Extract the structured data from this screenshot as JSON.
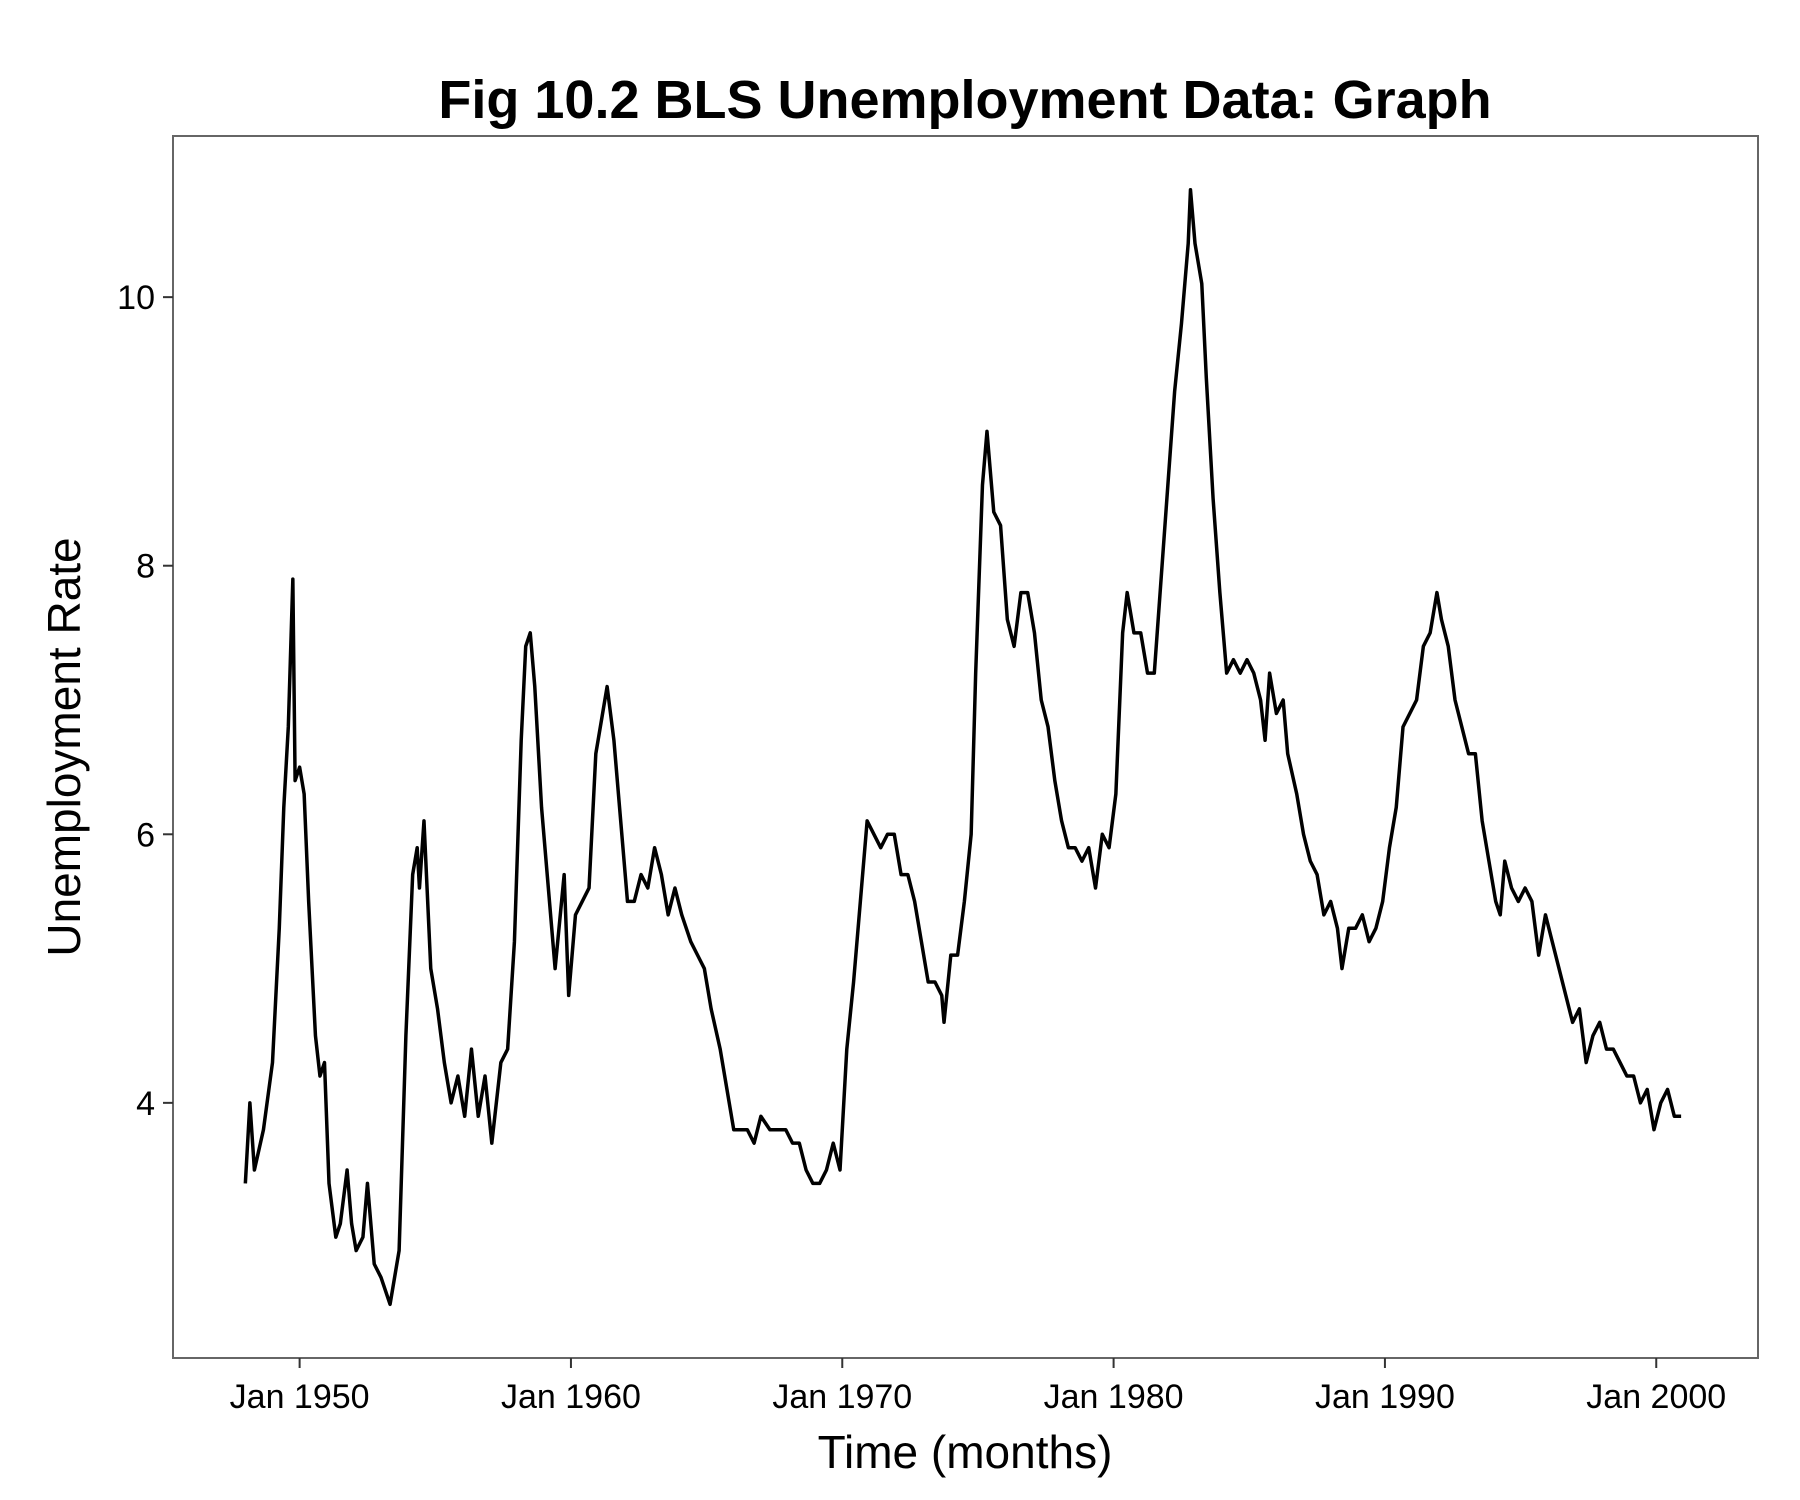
{
  "chart_data": {
    "type": "line",
    "title": "Fig 10.2 BLS Unemployment Data: Graph",
    "x_label": "Time (months)",
    "y_label": "Unemployment Rate",
    "color": "#000000",
    "x": [
      "1948-01",
      "1948-03",
      "1948-05",
      "1948-09",
      "1949-01",
      "1949-04",
      "1949-06",
      "1949-08",
      "1949-10",
      "1949-11",
      "1950-01",
      "1950-03",
      "1950-05",
      "1950-08",
      "1950-10",
      "1950-12",
      "1951-02",
      "1951-05",
      "1951-07",
      "1951-10",
      "1951-12",
      "1952-02",
      "1952-05",
      "1952-07",
      "1952-10",
      "1953-01",
      "1953-05",
      "1953-09",
      "1953-12",
      "1954-03",
      "1954-05",
      "1954-06",
      "1954-08",
      "1954-11",
      "1955-02",
      "1955-05",
      "1955-08",
      "1955-11",
      "1956-02",
      "1956-05",
      "1956-08",
      "1956-11",
      "1957-02",
      "1957-06",
      "1957-09",
      "1957-12",
      "1958-03",
      "1958-05",
      "1958-07",
      "1958-09",
      "1958-12",
      "1959-03",
      "1959-06",
      "1959-10",
      "1959-12",
      "1960-03",
      "1960-06",
      "1960-09",
      "1960-12",
      "1961-03",
      "1961-05",
      "1961-08",
      "1961-11",
      "1962-02",
      "1962-05",
      "1962-08",
      "1962-11",
      "1963-02",
      "1963-05",
      "1963-08",
      "1963-11",
      "1964-02",
      "1964-06",
      "1964-09",
      "1964-12",
      "1965-03",
      "1965-07",
      "1965-10",
      "1966-01",
      "1966-04",
      "1966-07",
      "1966-10",
      "1967-01",
      "1967-05",
      "1967-09",
      "1967-12",
      "1968-03",
      "1968-06",
      "1968-09",
      "1968-12",
      "1969-03",
      "1969-06",
      "1969-09",
      "1969-12",
      "1970-03",
      "1970-06",
      "1970-09",
      "1970-12",
      "1971-03",
      "1971-06",
      "1971-09",
      "1971-12",
      "1972-03",
      "1972-06",
      "1972-09",
      "1972-12",
      "1973-03",
      "1973-06",
      "1973-09",
      "1973-10",
      "1974-01",
      "1974-04",
      "1974-07",
      "1974-10",
      "1974-12",
      "1975-03",
      "1975-05",
      "1975-08",
      "1975-11",
      "1976-02",
      "1976-05",
      "1976-08",
      "1976-11",
      "1977-02",
      "1977-05",
      "1977-08",
      "1977-11",
      "1978-02",
      "1978-05",
      "1978-08",
      "1978-11",
      "1979-02",
      "1979-05",
      "1979-08",
      "1979-11",
      "1980-02",
      "1980-05",
      "1980-07",
      "1980-10",
      "1981-01",
      "1981-04",
      "1981-07",
      "1981-10",
      "1982-01",
      "1982-04",
      "1982-07",
      "1982-10",
      "1982-11",
      "1983-01",
      "1983-04",
      "1983-06",
      "1983-09",
      "1983-12",
      "1984-03",
      "1984-06",
      "1984-09",
      "1984-12",
      "1985-03",
      "1985-06",
      "1985-08",
      "1985-10",
      "1986-01",
      "1986-04",
      "1986-06",
      "1986-10",
      "1987-01",
      "1987-04",
      "1987-07",
      "1987-10",
      "1988-01",
      "1988-04",
      "1988-06",
      "1988-09",
      "1988-12",
      "1989-03",
      "1989-06",
      "1989-09",
      "1989-12",
      "1990-03",
      "1990-06",
      "1990-09",
      "1990-12",
      "1991-03",
      "1991-06",
      "1991-09",
      "1991-12",
      "1992-02",
      "1992-05",
      "1992-08",
      "1992-11",
      "1993-02",
      "1993-05",
      "1993-08",
      "1993-11",
      "1994-02",
      "1994-04",
      "1994-06",
      "1994-09",
      "1994-12",
      "1995-03",
      "1995-06",
      "1995-09",
      "1995-12",
      "1996-03",
      "1996-06",
      "1996-09",
      "1996-12",
      "1997-03",
      "1997-06",
      "1997-09",
      "1997-12",
      "1998-03",
      "1998-06",
      "1998-09",
      "1998-12",
      "1999-03",
      "1999-06",
      "1999-09",
      "1999-12",
      "2000-03",
      "2000-06",
      "2000-09",
      "2000-12"
    ],
    "values": [
      3.4,
      4.0,
      3.5,
      3.8,
      4.3,
      5.3,
      6.2,
      6.8,
      7.9,
      6.4,
      6.5,
      6.3,
      5.5,
      4.5,
      4.2,
      4.3,
      3.4,
      3.0,
      3.1,
      3.5,
      3.1,
      2.9,
      3.0,
      3.4,
      2.8,
      2.7,
      2.5,
      2.9,
      4.5,
      5.7,
      5.9,
      5.6,
      6.1,
      5.0,
      4.7,
      4.3,
      4.0,
      4.2,
      3.9,
      4.4,
      3.9,
      4.2,
      3.7,
      4.3,
      4.4,
      5.2,
      6.7,
      7.4,
      7.5,
      7.1,
      6.2,
      5.6,
      5.0,
      5.7,
      4.8,
      5.4,
      5.5,
      5.6,
      6.6,
      6.9,
      7.1,
      6.7,
      6.1,
      5.5,
      5.5,
      5.7,
      5.6,
      5.9,
      5.7,
      5.4,
      5.6,
      5.4,
      5.2,
      5.1,
      5.0,
      4.7,
      4.4,
      4.1,
      3.8,
      3.8,
      3.8,
      3.7,
      3.9,
      3.8,
      3.8,
      3.8,
      3.7,
      3.7,
      3.5,
      3.4,
      3.4,
      3.5,
      3.7,
      3.5,
      4.4,
      4.9,
      5.5,
      6.1,
      6.0,
      5.9,
      6.0,
      6.0,
      5.7,
      5.7,
      5.5,
      5.2,
      4.9,
      4.9,
      4.8,
      4.6,
      5.1,
      5.1,
      5.5,
      6.0,
      7.2,
      8.6,
      9.0,
      8.4,
      8.3,
      7.6,
      7.4,
      7.8,
      7.8,
      7.5,
      7.0,
      6.8,
      6.4,
      6.1,
      5.9,
      5.9,
      5.8,
      5.9,
      5.6,
      6.0,
      5.9,
      6.3,
      7.5,
      7.8,
      7.5,
      7.5,
      7.2,
      7.2,
      7.9,
      8.6,
      9.3,
      9.8,
      10.4,
      10.8,
      10.4,
      10.1,
      9.4,
      8.5,
      7.8,
      7.2,
      7.3,
      7.2,
      7.3,
      7.2,
      7.0,
      6.7,
      7.2,
      6.9,
      7.0,
      6.6,
      6.3,
      6.0,
      5.8,
      5.7,
      5.4,
      5.5,
      5.3,
      5.0,
      5.3,
      5.3,
      5.4,
      5.2,
      5.3,
      5.5,
      5.9,
      6.2,
      6.8,
      6.9,
      7.0,
      7.4,
      7.5,
      7.8,
      7.6,
      7.4,
      7.0,
      6.8,
      6.6,
      6.6,
      6.1,
      5.8,
      5.5,
      5.4,
      5.8,
      5.6,
      5.5,
      5.6,
      5.5,
      5.1,
      5.4,
      5.2,
      5.0,
      4.8,
      4.6,
      4.7,
      4.3,
      4.5,
      4.6,
      4.4,
      4.4,
      4.3,
      4.2,
      4.2,
      4.0,
      4.1,
      3.8,
      4.0,
      4.1,
      3.9,
      3.9
    ],
    "xlim": [
      "1945-05",
      "2003-10"
    ],
    "xticks": [
      {
        "value": "1950-01",
        "label": "Jan 1950"
      },
      {
        "value": "1960-01",
        "label": "Jan 1960"
      },
      {
        "value": "1970-01",
        "label": "Jan 1970"
      },
      {
        "value": "1980-01",
        "label": "Jan 1980"
      },
      {
        "value": "1990-01",
        "label": "Jan 1990"
      },
      {
        "value": "2000-01",
        "label": "Jan 2000"
      }
    ],
    "ylim": [
      2.1,
      11.2
    ],
    "yticks": [
      4,
      6,
      8,
      10
    ]
  }
}
